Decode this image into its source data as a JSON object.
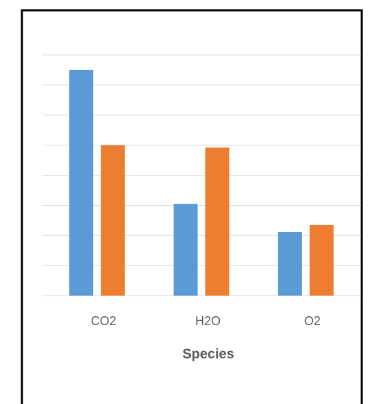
{
  "chart_data": {
    "type": "bar",
    "x_label": "Species",
    "categories": [
      "CO2",
      "H2O",
      "O2"
    ],
    "series": [
      {
        "color": "#5b9bd5",
        "values": [
          7.5,
          3.05,
          2.12
        ]
      },
      {
        "color": "#ed7d31",
        "values": [
          5.0,
          4.92,
          2.35
        ]
      }
    ],
    "ylim": [
      0,
      8
    ],
    "yticks": [
      0,
      1,
      2,
      3,
      4,
      5,
      6,
      7,
      8
    ],
    "grid": true
  }
}
